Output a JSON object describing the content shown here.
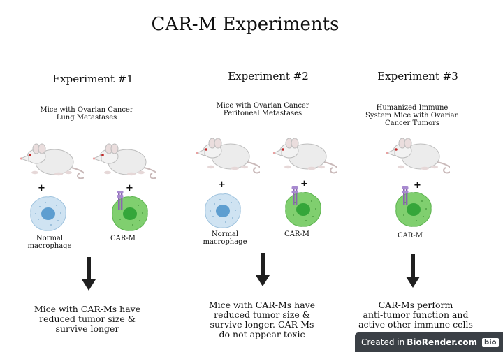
{
  "title": "CAR-M Experiments",
  "experiments": [
    {
      "title": "Experiment #1",
      "condition": [
        "Mice with Ovarian Cancer",
        "Lung Metastases"
      ],
      "cells": [
        {
          "label": [
            "Normal",
            "macrophage"
          ],
          "sign": "+"
        },
        {
          "label": [
            "CAR-M"
          ],
          "sign": "+"
        }
      ],
      "result": [
        "Mice with CAR-Ms have",
        "reduced tumor size &",
        "survive longer"
      ]
    },
    {
      "title": "Experiment #2",
      "condition": [
        "Mice with Ovarian Cancer",
        "Peritoneal Metastases"
      ],
      "cells": [
        {
          "label": [
            "Normal",
            "macrophage"
          ],
          "sign": "+"
        },
        {
          "label": [
            "CAR-M"
          ],
          "sign": "+"
        }
      ],
      "result": [
        "Mice with CAR-Ms have",
        "reduced tumor size &",
        "survive longer. CAR-Ms",
        "do not appear toxic"
      ]
    },
    {
      "title": "Experiment #3",
      "condition": [
        "Humanized Immune",
        "System Mice with Ovarian",
        "Cancer Tumors"
      ],
      "cells": [
        {
          "label": [
            "CAR-M"
          ],
          "sign": "+"
        }
      ],
      "result": [
        "CAR-Ms perform",
        "anti-tumor function and",
        "active other immune cells"
      ]
    }
  ],
  "watermark": {
    "prefix": "Created in",
    "brand": "BioRender.com",
    "logo": "bio"
  },
  "colors": {
    "normal_cell_fill": "#cfe3f2",
    "normal_cell_nucleus": "#5e9ed0",
    "car_cell_fill": "#80cf6f",
    "car_cell_nucleus": "#35a63a",
    "receptor": "#8a67b0",
    "arrow": "#1f1f1f"
  },
  "icons": [
    "mouse-icon",
    "normal-macrophage-icon",
    "car-macrophage-icon",
    "down-arrow-icon"
  ]
}
